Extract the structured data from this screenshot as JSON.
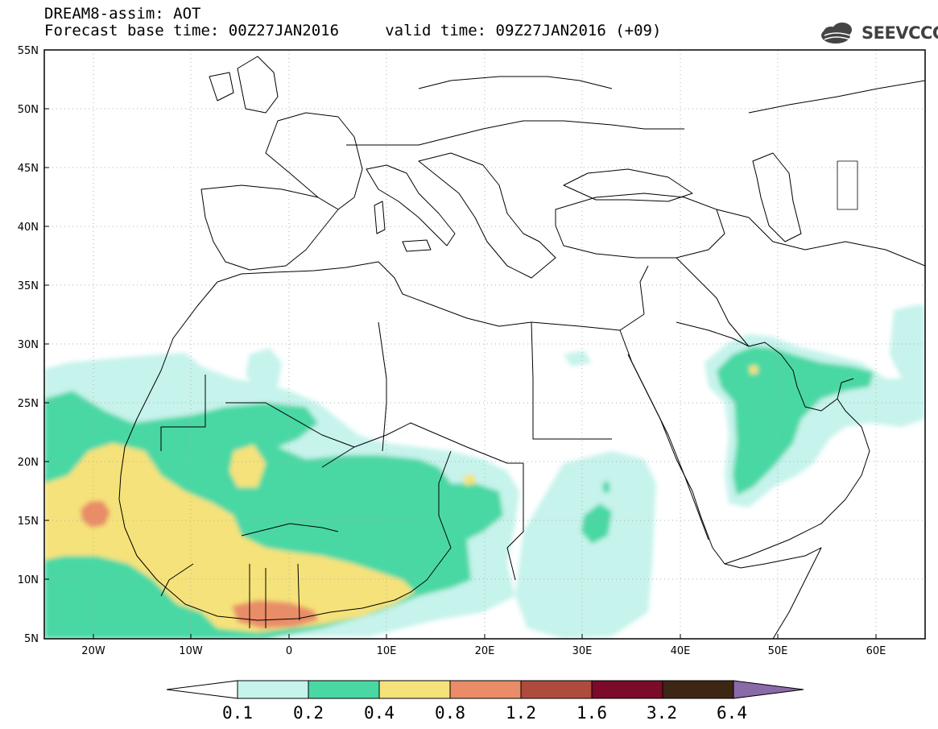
{
  "header": {
    "title_line1": "DREAM8-assim: AOT",
    "title_line2": "Forecast base time: 00Z27JAN2016     valid time: 09Z27JAN2016 (+09)",
    "logo_text": "SEEVCCC"
  },
  "axes": {
    "lat_labels": [
      "55N",
      "50N",
      "45N",
      "40N",
      "35N",
      "30N",
      "25N",
      "20N",
      "15N",
      "10N",
      "5N"
    ],
    "lon_labels": [
      "20W",
      "10W",
      "0",
      "10E",
      "20E",
      "30E",
      "40E",
      "50E",
      "60E"
    ]
  },
  "legend": {
    "levels": [
      "0.1",
      "0.2",
      "0.4",
      "0.8",
      "1.2",
      "1.6",
      "3.2",
      "6.4"
    ],
    "colors": [
      "#c6f3ec",
      "#49d8a4",
      "#f5e27a",
      "#e98c67",
      "#ad4b3d",
      "#7c0a29",
      "#3e2614",
      "#8b6aa9"
    ]
  },
  "map_extent": {
    "lon_min": -25,
    "lon_max": 65,
    "lat_min": 5,
    "lat_max": 55
  }
}
